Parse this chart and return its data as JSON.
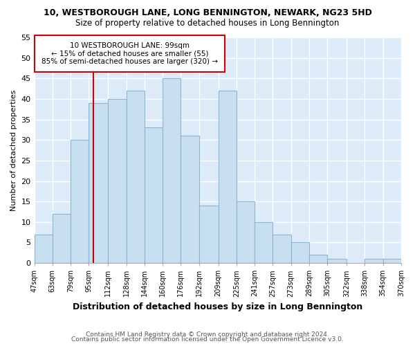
{
  "title": "10, WESTBOROUGH LANE, LONG BENNINGTON, NEWARK, NG23 5HD",
  "subtitle": "Size of property relative to detached houses in Long Bennington",
  "xlabel": "Distribution of detached houses by size in Long Bennington",
  "ylabel": "Number of detached properties",
  "bar_color": "#c8dff0",
  "bar_edgecolor": "#8ab4d4",
  "bins": [
    47,
    63,
    79,
    95,
    112,
    128,
    144,
    160,
    176,
    192,
    209,
    225,
    241,
    257,
    273,
    289,
    305,
    322,
    338,
    354,
    370
  ],
  "counts": [
    7,
    12,
    30,
    39,
    40,
    42,
    33,
    45,
    31,
    14,
    42,
    15,
    10,
    7,
    5,
    2,
    1,
    0,
    1,
    1
  ],
  "tick_labels": [
    "47sqm",
    "63sqm",
    "79sqm",
    "95sqm",
    "112sqm",
    "128sqm",
    "144sqm",
    "160sqm",
    "176sqm",
    "192sqm",
    "209sqm",
    "225sqm",
    "241sqm",
    "257sqm",
    "273sqm",
    "289sqm",
    "305sqm",
    "322sqm",
    "338sqm",
    "354sqm",
    "370sqm"
  ],
  "vline_x": 99,
  "vline_color": "#cc0000",
  "annotation_line1": "10 WESTBOROUGH LANE: 99sqm",
  "annotation_line2": "← 15% of detached houses are smaller (55)",
  "annotation_line3": "85% of semi-detached houses are larger (320) →",
  "annotation_box_edgecolor": "#cc0000",
  "ylim": [
    0,
    55
  ],
  "yticks": [
    0,
    5,
    10,
    15,
    20,
    25,
    30,
    35,
    40,
    45,
    50,
    55
  ],
  "footer1": "Contains HM Land Registry data © Crown copyright and database right 2024.",
  "footer2": "Contains public sector information licensed under the Open Government Licence v3.0.",
  "plot_bg_color": "#ddeaf7",
  "fig_bg_color": "#ffffff"
}
